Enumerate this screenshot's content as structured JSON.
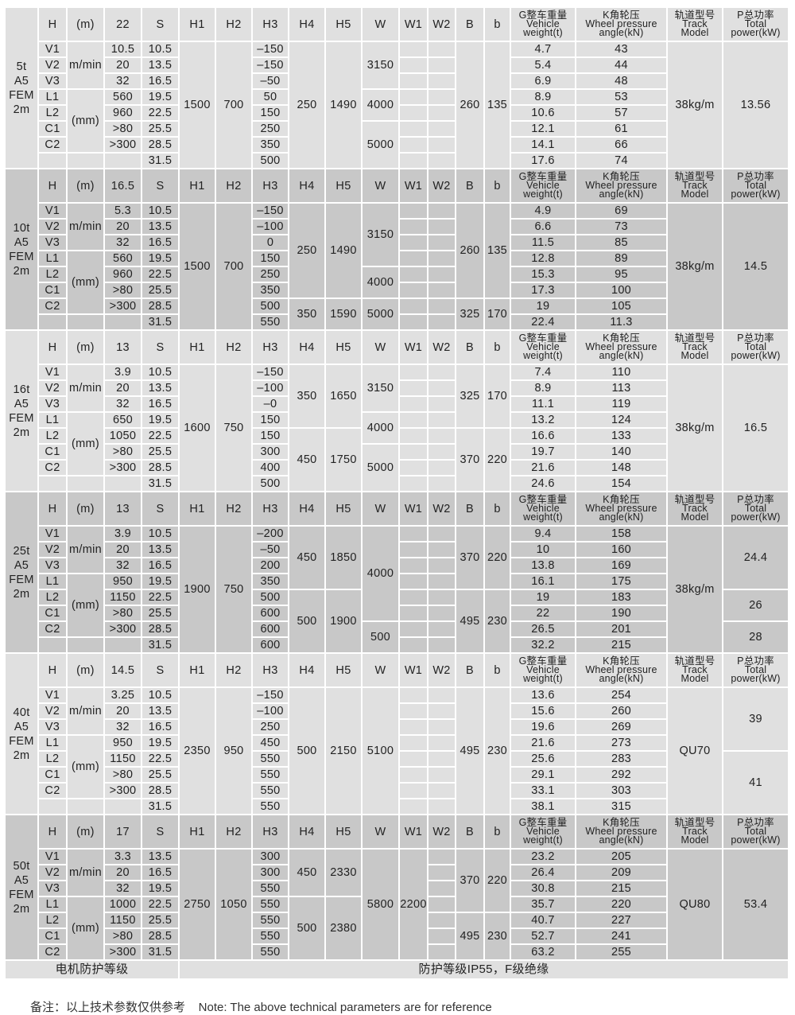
{
  "headers": {
    "H": "H",
    "unit_m": "(m)",
    "S": "S",
    "H1": "H1",
    "H2": "H2",
    "H3": "H3",
    "H4": "H4",
    "H5": "H5",
    "W": "W",
    "W1": "W1",
    "W2": "W2",
    "B": "B",
    "b": "b",
    "G": [
      "G整车重量",
      "Vehicle",
      "weight(t)"
    ],
    "K": [
      "K角轮压",
      "Wheel pressure",
      "angle(kN)"
    ],
    "Track": [
      "轨道型号",
      "Track",
      "Model"
    ],
    "P": [
      "P总功率",
      "Total",
      "power(kW)"
    ]
  },
  "row_codes": [
    "V1",
    "V2",
    "V3",
    "L1",
    "L2",
    "C1",
    "C2"
  ],
  "units": {
    "speed": "m/min",
    "length": "(mm)"
  },
  "colors": {
    "light": "#e0e0e0",
    "dark": "#c8c8c8"
  },
  "blocks": [
    {
      "label": [
        "5t",
        "A5",
        "FEM",
        "2m"
      ],
      "shade": "light",
      "h_value": "22",
      "values": [
        "10.5",
        "20",
        "32",
        "560",
        "960",
        ">80",
        ">300"
      ],
      "S": [
        "10.5",
        "13.5",
        "16.5",
        "19.5",
        "22.5",
        "25.5",
        "28.5",
        "31.5"
      ],
      "H1": [
        {
          "v": "1500",
          "n": 8
        }
      ],
      "H2": [
        {
          "v": "700",
          "n": 8
        }
      ],
      "H3": [
        "–150",
        "–150",
        "–50",
        "50",
        "150",
        "250",
        "350",
        "500"
      ],
      "H4": [
        {
          "v": "250",
          "n": 8
        }
      ],
      "H5": [
        {
          "v": "1490",
          "n": 8
        }
      ],
      "W": [
        {
          "v": "3150",
          "n": 3
        },
        {
          "v": "4000",
          "n": 2
        },
        {
          "v": "5000",
          "n": 3
        }
      ],
      "W1": [],
      "B": [
        {
          "v": "260",
          "n": 8
        }
      ],
      "b": [
        {
          "v": "135",
          "n": 8
        }
      ],
      "G": [
        "4.7",
        "5.4",
        "6.9",
        "8.9",
        "10.6",
        "12.1",
        "14.1",
        "17.6"
      ],
      "K": [
        "43",
        "44",
        "48",
        "53",
        "57",
        "61",
        "66",
        "74"
      ],
      "Track": [
        {
          "v": "38kg/m",
          "n": 8
        }
      ],
      "P": [
        {
          "v": "13.56",
          "n": 8
        }
      ]
    },
    {
      "label": [
        "10t",
        "A5",
        "FEM",
        "2m"
      ],
      "shade": "dark",
      "h_value": "16.5",
      "values": [
        "5.3",
        "20",
        "32",
        "560",
        "960",
        ">80",
        ">300"
      ],
      "S": [
        "10.5",
        "13.5",
        "16.5",
        "19.5",
        "22.5",
        "25.5",
        "28.5",
        "31.5"
      ],
      "H1": [
        {
          "v": "1500",
          "n": 8
        }
      ],
      "H2": [
        {
          "v": "700",
          "n": 8
        }
      ],
      "H3": [
        "–150",
        "–100",
        "0",
        "150",
        "250",
        "350",
        "500",
        "550"
      ],
      "H4": [
        {
          "v": "250",
          "n": 6
        },
        {
          "v": "350",
          "n": 2
        }
      ],
      "H5": [
        {
          "v": "1490",
          "n": 6
        },
        {
          "v": "1590",
          "n": 2
        }
      ],
      "W": [
        {
          "v": "3150",
          "n": 4
        },
        {
          "v": "4000",
          "n": 2
        },
        {
          "v": "5000",
          "n": 2
        }
      ],
      "W1": [],
      "B": [
        {
          "v": "260",
          "n": 6
        },
        {
          "v": "325",
          "n": 2
        }
      ],
      "b": [
        {
          "v": "135",
          "n": 6
        },
        {
          "v": "170",
          "n": 2
        }
      ],
      "G": [
        "4.9",
        "6.6",
        "11.5",
        "12.8",
        "15.3",
        "17.3",
        "19",
        "22.4"
      ],
      "K": [
        "69",
        "73",
        "85",
        "89",
        "95",
        "100",
        "105",
        "11.3"
      ],
      "Track": [
        {
          "v": "38kg/m",
          "n": 8
        }
      ],
      "P": [
        {
          "v": "14.5",
          "n": 8
        }
      ]
    },
    {
      "label": [
        "16t",
        "A5",
        "FEM",
        "2m"
      ],
      "shade": "light",
      "h_value": "13",
      "values": [
        "3.9",
        "20",
        "32",
        "650",
        "1050",
        ">80",
        ">300"
      ],
      "S": [
        "10.5",
        "13.5",
        "16.5",
        "19.5",
        "22.5",
        "25.5",
        "28.5",
        "31.5"
      ],
      "H1": [
        {
          "v": "1600",
          "n": 8
        }
      ],
      "H2": [
        {
          "v": "750",
          "n": 8
        }
      ],
      "H3": [
        "–150",
        "–100",
        "–0",
        "150",
        "150",
        "300",
        "400",
        "500"
      ],
      "H4": [
        {
          "v": "350",
          "n": 4
        },
        {
          "v": "450",
          "n": 4
        }
      ],
      "H5": [
        {
          "v": "1650",
          "n": 4
        },
        {
          "v": "1750",
          "n": 4
        }
      ],
      "W": [
        {
          "v": "3150",
          "n": 3
        },
        {
          "v": "4000",
          "n": 2
        },
        {
          "v": "5000",
          "n": 3
        }
      ],
      "W1": [],
      "B": [
        {
          "v": "325",
          "n": 4
        },
        {
          "v": "370",
          "n": 4
        }
      ],
      "b": [
        {
          "v": "170",
          "n": 4
        },
        {
          "v": "220",
          "n": 4
        }
      ],
      "G": [
        "7.4",
        "8.9",
        "11.1",
        "13.2",
        "16.6",
        "19.7",
        "21.6",
        "24.6"
      ],
      "K": [
        "110",
        "113",
        "119",
        "124",
        "133",
        "140",
        "148",
        "154"
      ],
      "Track": [
        {
          "v": "38kg/m",
          "n": 8
        }
      ],
      "P": [
        {
          "v": "16.5",
          "n": 8
        }
      ]
    },
    {
      "label": [
        "25t",
        "A5",
        "FEM",
        "2m"
      ],
      "shade": "dark",
      "h_value": "13",
      "values": [
        "3.9",
        "20",
        "32",
        "950",
        "1150",
        ">80",
        ">300"
      ],
      "S": [
        "10.5",
        "13.5",
        "16.5",
        "19.5",
        "22.5",
        "25.5",
        "28.5",
        "31.5"
      ],
      "H1": [
        {
          "v": "1900",
          "n": 8
        }
      ],
      "H2": [
        {
          "v": "750",
          "n": 8
        }
      ],
      "H3": [
        "–200",
        "–50",
        "200",
        "350",
        "500",
        "600",
        "600",
        "600"
      ],
      "H4": [
        {
          "v": "450",
          "n": 4
        },
        {
          "v": "500",
          "n": 4
        }
      ],
      "H5": [
        {
          "v": "1850",
          "n": 4
        },
        {
          "v": "1900",
          "n": 4
        }
      ],
      "W": [
        {
          "v": "4000",
          "n": 6
        },
        {
          "v": "500",
          "n": 2
        }
      ],
      "W1": [],
      "B": [
        {
          "v": "370",
          "n": 4
        },
        {
          "v": "495",
          "n": 4
        }
      ],
      "b": [
        {
          "v": "220",
          "n": 4
        },
        {
          "v": "230",
          "n": 4
        }
      ],
      "G": [
        "9.4",
        "10",
        "13.8",
        "16.1",
        "19",
        "22",
        "26.5",
        "32.2"
      ],
      "K": [
        "158",
        "160",
        "169",
        "175",
        "183",
        "190",
        "201",
        "215"
      ],
      "Track": [
        {
          "v": "38kg/m",
          "n": 8
        }
      ],
      "P": [
        {
          "v": "24.4",
          "n": 4
        },
        {
          "v": "26",
          "n": 2
        },
        {
          "v": "28",
          "n": 2
        }
      ]
    },
    {
      "label": [
        "40t",
        "A5",
        "FEM",
        "2m"
      ],
      "shade": "light",
      "h_value": "14.5",
      "values": [
        "3.25",
        "20",
        "32",
        "950",
        "1150",
        ">80",
        ">300"
      ],
      "S": [
        "10.5",
        "13.5",
        "16.5",
        "19.5",
        "22.5",
        "25.5",
        "28.5",
        "31.5"
      ],
      "H1": [
        {
          "v": "2350",
          "n": 8
        }
      ],
      "H2": [
        {
          "v": "950",
          "n": 8
        }
      ],
      "H3": [
        "–150",
        "–100",
        "250",
        "450",
        "550",
        "550",
        "550",
        "550"
      ],
      "H4": [
        {
          "v": "500",
          "n": 8
        }
      ],
      "H5": [
        {
          "v": "2150",
          "n": 8
        }
      ],
      "W": [
        {
          "v": "5100",
          "n": 8
        }
      ],
      "W1": [],
      "B": [
        {
          "v": "495",
          "n": 8
        }
      ],
      "b": [
        {
          "v": "230",
          "n": 8
        }
      ],
      "G": [
        "13.6",
        "15.6",
        "19.6",
        "21.6",
        "25.6",
        "29.1",
        "33.1",
        "38.1"
      ],
      "K": [
        "254",
        "260",
        "269",
        "273",
        "283",
        "292",
        "303",
        "315"
      ],
      "Track": [
        {
          "v": "QU70",
          "n": 8
        }
      ],
      "P": [
        {
          "v": "39",
          "n": 4
        },
        {
          "v": "41",
          "n": 4
        }
      ]
    },
    {
      "label": [
        "50t",
        "A5",
        "FEM",
        "2m"
      ],
      "shade": "dark",
      "h_value": "17",
      "values": [
        "3.3",
        "20",
        "32",
        "1000",
        "1150",
        ">80",
        ">300"
      ],
      "S": [
        "13.5",
        "16.5",
        "19.5",
        "22.5",
        "25.5",
        "28.5",
        "31.5"
      ],
      "H1": [
        {
          "v": "2750",
          "n": 7
        }
      ],
      "H2": [
        {
          "v": "1050",
          "n": 7
        }
      ],
      "H3": [
        "300",
        "300",
        "550",
        "550",
        "550",
        "550",
        "550"
      ],
      "H4": [
        {
          "v": "450",
          "n": 3
        },
        {
          "v": "500",
          "n": 4
        }
      ],
      "H5": [
        {
          "v": "2330",
          "n": 3
        },
        {
          "v": "2380",
          "n": 4
        }
      ],
      "W": [
        {
          "v": "5800",
          "n": 7
        }
      ],
      "W1": [
        {
          "v": "2200",
          "n": 7
        }
      ],
      "B": [
        {
          "v": "370",
          "n": 4
        },
        {
          "v": "495",
          "n": 3
        }
      ],
      "b": [
        {
          "v": "220",
          "n": 4
        },
        {
          "v": "230",
          "n": 3
        }
      ],
      "G": [
        "23.2",
        "26.4",
        "30.8",
        "35.7",
        "40.7",
        "52.7",
        "63.2"
      ],
      "K": [
        "205",
        "209",
        "215",
        "220",
        "227",
        "241",
        "255"
      ],
      "Track": [
        {
          "v": "QU80",
          "n": 7
        }
      ],
      "P": [
        {
          "v": "53.4",
          "n": 7
        }
      ]
    }
  ],
  "footer": {
    "label": "电机防护等级",
    "value": "防护等级IP55，F级绝缘"
  },
  "note": "备注：以上技术参数仅供参考    Note: The above technical parameters are for reference"
}
